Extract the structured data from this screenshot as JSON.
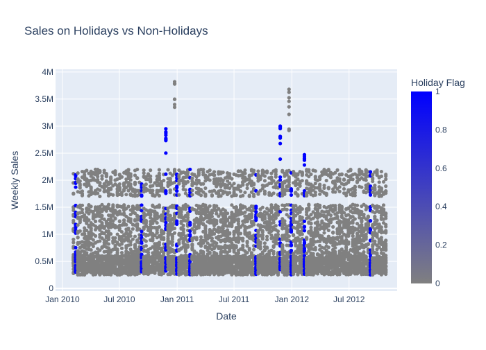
{
  "colors": {
    "plot_bg": "#E5ECF6",
    "grid": "#ffffff",
    "text": "#2a3f5f",
    "non_holiday": "#808080",
    "holiday": "#0000ff"
  },
  "chart_data": {
    "type": "scatter",
    "title": "Sales on Holidays vs Non-Holidays",
    "xlabel": "Date",
    "ylabel": "Weekly Sales",
    "xlim": [
      "2009-12-10",
      "2012-12-01"
    ],
    "ylim": [
      -50000,
      4050000
    ],
    "grid": true,
    "x_ticks": [
      {
        "label": "Jan 2010",
        "value": "2010-01-01"
      },
      {
        "label": "Jul 2010",
        "value": "2010-07-01"
      },
      {
        "label": "Jan 2011",
        "value": "2011-01-01"
      },
      {
        "label": "Jul 2011",
        "value": "2011-07-01"
      },
      {
        "label": "Jan 2012",
        "value": "2012-01-01"
      },
      {
        "label": "Jul 2012",
        "value": "2012-07-01"
      }
    ],
    "y_ticks": [
      {
        "label": "0",
        "value": 0
      },
      {
        "label": "0.5M",
        "value": 500000
      },
      {
        "label": "1M",
        "value": 1000000
      },
      {
        "label": "1.5M",
        "value": 1500000
      },
      {
        "label": "2M",
        "value": 2000000
      },
      {
        "label": "2.5M",
        "value": 2500000
      },
      {
        "label": "3M",
        "value": 3000000
      },
      {
        "label": "3.5M",
        "value": 3500000
      },
      {
        "label": "4M",
        "value": 4000000
      }
    ],
    "weeks_start": "2010-02-05",
    "weeks_end": "2012-10-26",
    "holiday_dates": [
      "2010-02-12",
      "2010-09-10",
      "2010-11-26",
      "2010-12-31",
      "2011-02-11",
      "2011-09-09",
      "2011-11-25",
      "2011-12-30",
      "2012-02-10",
      "2012-09-07"
    ],
    "sales_range_typical": [
      250000,
      2200000
    ],
    "peak_weeks": [
      {
        "date": "2010-11-26",
        "max_sales": 2950000
      },
      {
        "date": "2010-12-24",
        "max_sales": 3820000
      },
      {
        "date": "2011-11-25",
        "max_sales": 3000000
      },
      {
        "date": "2011-12-23",
        "max_sales": 3680000
      },
      {
        "date": "2012-02-10",
        "max_sales": 2470000
      }
    ],
    "colorbar": {
      "title": "Holiday Flag",
      "range": [
        0,
        1
      ],
      "ticks": [
        {
          "label": "1",
          "value": 1
        },
        {
          "label": "0.8",
          "value": 0.8
        },
        {
          "label": "0.6",
          "value": 0.6
        },
        {
          "label": "0.4",
          "value": 0.4
        },
        {
          "label": "0.2",
          "value": 0.2
        },
        {
          "label": "0",
          "value": 0
        }
      ]
    }
  }
}
